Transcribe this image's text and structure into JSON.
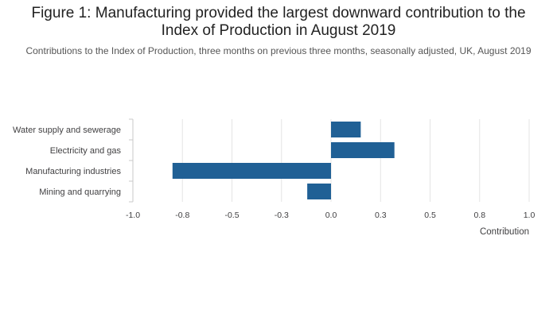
{
  "title": "Figure 1: Manufacturing provided the largest downward contribution to the Index of Production in August 2019",
  "subtitle": "Contributions to the Index of Production, three months on previous three months, seasonally adjusted, UK, August 2019",
  "colors": {
    "bar": "#206095",
    "grid": "#e4e4e4",
    "axis": "#c8c8c8"
  },
  "chart_data": {
    "type": "bar",
    "orientation": "horizontal",
    "categories": [
      "Water supply and sewerage",
      "Electricity and gas",
      "Manufacturing industries",
      "Mining and quarrying"
    ],
    "values": [
      0.15,
      0.32,
      -0.8,
      -0.12
    ],
    "xlabel": "Contribution",
    "ylabel": "",
    "xlim": [
      -1.0,
      1.0
    ],
    "ticks": [
      -1.0,
      -0.75,
      -0.5,
      -0.25,
      0.0,
      0.25,
      0.5,
      0.75,
      1.0
    ],
    "tick_labels": [
      "-1.0",
      "-0.8",
      "-0.5",
      "-0.3",
      "0.0",
      "0.3",
      "0.5",
      "0.8",
      "1.0"
    ],
    "grid": true,
    "legend": "none"
  }
}
